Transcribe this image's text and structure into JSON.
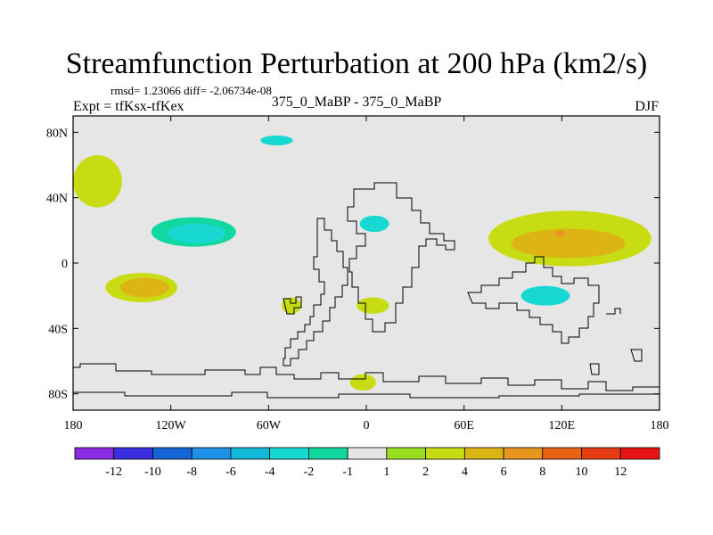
{
  "chart_data": {
    "type": "heatmap",
    "title": "Streamfunction Perturbation at 200 hPa (km2/s)",
    "stats_label": "rmsd= 1.23066 diff= -2.06734e-08",
    "experiment_label": "Expt = tfKsx-tfKex",
    "subtitle": "375_0_MaBP - 375_0_MaBP",
    "season": "DJF",
    "x_range": [
      -180,
      180
    ],
    "y_range": [
      -90,
      90
    ],
    "x_ticks": [
      {
        "value": -180,
        "label": "180"
      },
      {
        "value": -120,
        "label": "120W"
      },
      {
        "value": -60,
        "label": "60W"
      },
      {
        "value": 0,
        "label": "0"
      },
      {
        "value": 60,
        "label": "60E"
      },
      {
        "value": 120,
        "label": "120E"
      },
      {
        "value": 180,
        "label": "180"
      }
    ],
    "y_ticks": [
      {
        "value": 80,
        "label": "80N"
      },
      {
        "value": 40,
        "label": "40N"
      },
      {
        "value": 0,
        "label": "0"
      },
      {
        "value": -40,
        "label": "40S"
      },
      {
        "value": -80,
        "label": "80S"
      }
    ],
    "colorbar": {
      "colors": [
        "#8a2be2",
        "#3a2fe0",
        "#1565d6",
        "#1e90e6",
        "#12b8d8",
        "#18d9d2",
        "#10d89e",
        "#e6e6e6",
        "#9be020",
        "#c8dc14",
        "#dcb414",
        "#e6961e",
        "#e66414",
        "#e63c14",
        "#e61414"
      ],
      "labels": [
        "-12",
        "-10",
        "-8",
        "-6",
        "-4",
        "-2",
        "-1",
        "1",
        "2",
        "4",
        "6",
        "8",
        "10",
        "12"
      ]
    },
    "regions": [
      {
        "name": "north-pacific-east",
        "lon": -165,
        "lat": 50,
        "rlon": 15,
        "rlat": 16,
        "value": 2
      },
      {
        "name": "north-atlantic-high",
        "lon": -52,
        "lat": 76,
        "rlon": 40,
        "rlat": 10,
        "value": -1
      },
      {
        "name": "north-atlantic-core",
        "lon": -55,
        "lat": 75,
        "rlon": 10,
        "rlat": 3,
        "value": -4
      },
      {
        "name": "pacific-trough",
        "lon": -108,
        "lat": 21,
        "rlon": 32,
        "rlat": 12,
        "value": -1
      },
      {
        "name": "pacific-trough-mid",
        "lon": -106,
        "lat": 19,
        "rlon": 26,
        "rlat": 9,
        "value": -2
      },
      {
        "name": "pacific-trough-core",
        "lon": -104,
        "lat": 18,
        "rlon": 18,
        "rlat": 6,
        "value": -4
      },
      {
        "name": "pacific-ridge",
        "lon": -138,
        "lat": -15,
        "rlon": 22,
        "rlat": 9,
        "value": 2
      },
      {
        "name": "pacific-ridge-core",
        "lon": -136,
        "lat": -15,
        "rlon": 15,
        "rlat": 6,
        "value": 4
      },
      {
        "name": "south-america-blob",
        "lon": -46,
        "lat": -26,
        "rlon": 6,
        "rlat": 5,
        "value": 2
      },
      {
        "name": "south-atlantic-blob",
        "lon": 4,
        "lat": -26,
        "rlon": 10,
        "rlat": 5,
        "value": 2
      },
      {
        "name": "mediterranean-trough",
        "lon": 7,
        "lat": 24,
        "rlon": 14,
        "rlat": 9,
        "value": -1
      },
      {
        "name": "mediterranean-core",
        "lon": 5,
        "lat": 24,
        "rlon": 9,
        "rlat": 5,
        "value": -4
      },
      {
        "name": "southern-ocean-blob",
        "lon": -2,
        "lat": -73,
        "rlon": 8,
        "rlat": 5,
        "value": 2
      },
      {
        "name": "east-asia-ridge",
        "lon": 125,
        "lat": 15,
        "rlon": 50,
        "rlat": 17,
        "value": 2
      },
      {
        "name": "east-asia-ridge-core",
        "lon": 124,
        "lat": 12,
        "rlon": 35,
        "rlat": 9,
        "value": 4
      },
      {
        "name": "east-asia-max",
        "lon": 119,
        "lat": 18,
        "rlon": 3,
        "rlat": 2,
        "value": 6
      },
      {
        "name": "indian-ocean-trough",
        "lon": 115,
        "lat": -22,
        "rlon": 30,
        "rlat": 11,
        "value": -1
      },
      {
        "name": "indian-ocean-core",
        "lon": 110,
        "lat": -20,
        "rlon": 15,
        "rlat": 6,
        "value": -4
      },
      {
        "name": "siberia-trough",
        "lon": 115,
        "lat": 64,
        "rlon": 60,
        "rlat": 10,
        "value": -1
      }
    ]
  }
}
